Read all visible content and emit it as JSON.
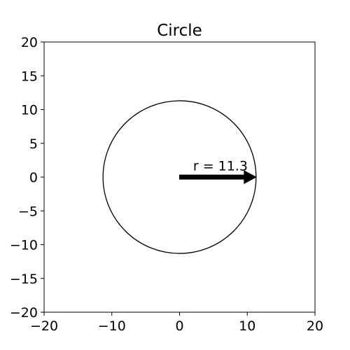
{
  "chart_data": {
    "type": "line",
    "title": "Circle",
    "xlabel": "",
    "ylabel": "",
    "xlim": [
      -20,
      20
    ],
    "ylim": [
      -20,
      20
    ],
    "grid": false,
    "x_ticks": [
      -20,
      -10,
      0,
      10,
      20
    ],
    "x_tick_labels": [
      "−20",
      "−10",
      "0",
      "10",
      "20"
    ],
    "y_ticks": [
      -20,
      -15,
      -10,
      -5,
      0,
      5,
      10,
      15,
      20
    ],
    "y_tick_labels": [
      "−20",
      "−15",
      "−10",
      "−5",
      "0",
      "5",
      "10",
      "15",
      "20"
    ],
    "circle": {
      "center": [
        0,
        0
      ],
      "radius": 11.3,
      "color": "#000000"
    },
    "arrow": {
      "from": [
        0,
        0
      ],
      "to": [
        11.3,
        0
      ],
      "color": "#000000"
    },
    "annotation": {
      "text": "r = 11.3",
      "x": 2,
      "y": 1
    }
  }
}
